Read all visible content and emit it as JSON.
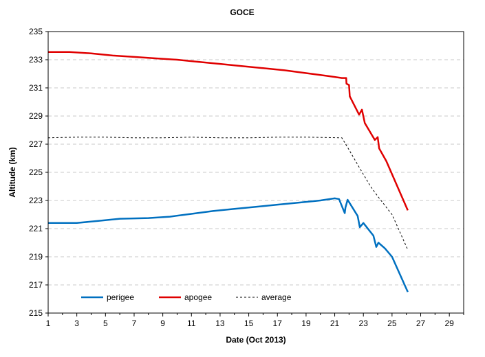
{
  "chart_data": {
    "type": "line",
    "title": "GOCE",
    "xlabel": "Date (Oct 2013)",
    "ylabel": "Altitude (km)",
    "xlim": [
      1,
      30
    ],
    "ylim": [
      215,
      235
    ],
    "x_ticks": [
      1,
      3,
      5,
      7,
      9,
      11,
      13,
      15,
      17,
      19,
      21,
      23,
      25,
      27,
      29
    ],
    "y_ticks": [
      215,
      217,
      219,
      221,
      223,
      225,
      227,
      229,
      231,
      233,
      235
    ],
    "grid": "horizontal dashed",
    "legend_position": "bottom-left inside",
    "series": [
      {
        "name": "perigee",
        "color": "#0070C0",
        "style": "solid",
        "points": [
          [
            1,
            221.4
          ],
          [
            3,
            221.4
          ],
          [
            4.5,
            221.55
          ],
          [
            6,
            221.7
          ],
          [
            8,
            221.75
          ],
          [
            9.5,
            221.85
          ],
          [
            11,
            222.05
          ],
          [
            12.5,
            222.25
          ],
          [
            14,
            222.4
          ],
          [
            15.5,
            222.55
          ],
          [
            17,
            222.7
          ],
          [
            18.5,
            222.85
          ],
          [
            20,
            223.0
          ],
          [
            21,
            223.15
          ],
          [
            21.3,
            223.1
          ],
          [
            21.7,
            222.1
          ],
          [
            21.75,
            222.5
          ],
          [
            21.9,
            223.05
          ],
          [
            22.6,
            221.9
          ],
          [
            22.75,
            221.1
          ],
          [
            23.0,
            221.4
          ],
          [
            23.7,
            220.5
          ],
          [
            23.9,
            219.7
          ],
          [
            24.05,
            220.0
          ],
          [
            24.5,
            219.6
          ],
          [
            25.0,
            219.0
          ],
          [
            26.1,
            216.5
          ]
        ]
      },
      {
        "name": "apogee",
        "color": "#E00000",
        "style": "solid",
        "points": [
          [
            1,
            233.55
          ],
          [
            2.5,
            233.55
          ],
          [
            4,
            233.45
          ],
          [
            5.5,
            233.3
          ],
          [
            7,
            233.2
          ],
          [
            8.5,
            233.1
          ],
          [
            10,
            233.0
          ],
          [
            11.5,
            232.85
          ],
          [
            13,
            232.7
          ],
          [
            14.5,
            232.55
          ],
          [
            16,
            232.4
          ],
          [
            17.5,
            232.25
          ],
          [
            19,
            232.05
          ],
          [
            20.5,
            231.85
          ],
          [
            21.5,
            231.7
          ],
          [
            21.8,
            231.7
          ],
          [
            21.82,
            231.3
          ],
          [
            22.0,
            231.2
          ],
          [
            22.05,
            230.4
          ],
          [
            22.7,
            229.1
          ],
          [
            22.9,
            229.45
          ],
          [
            23.1,
            228.5
          ],
          [
            23.8,
            227.3
          ],
          [
            24.0,
            227.5
          ],
          [
            24.1,
            226.7
          ],
          [
            24.6,
            225.8
          ],
          [
            26.1,
            222.3
          ]
        ]
      },
      {
        "name": "average",
        "color": "#000000",
        "style": "dashed",
        "points": [
          [
            1,
            227.45
          ],
          [
            3,
            227.5
          ],
          [
            5,
            227.5
          ],
          [
            7,
            227.45
          ],
          [
            9,
            227.45
          ],
          [
            11,
            227.5
          ],
          [
            13,
            227.45
          ],
          [
            15,
            227.45
          ],
          [
            17,
            227.5
          ],
          [
            19,
            227.5
          ],
          [
            21.5,
            227.45
          ],
          [
            22.0,
            226.6
          ],
          [
            22.8,
            225.2
          ],
          [
            23.5,
            224.0
          ],
          [
            24.0,
            223.3
          ],
          [
            25.0,
            222.0
          ],
          [
            26.1,
            219.5
          ]
        ]
      }
    ]
  }
}
